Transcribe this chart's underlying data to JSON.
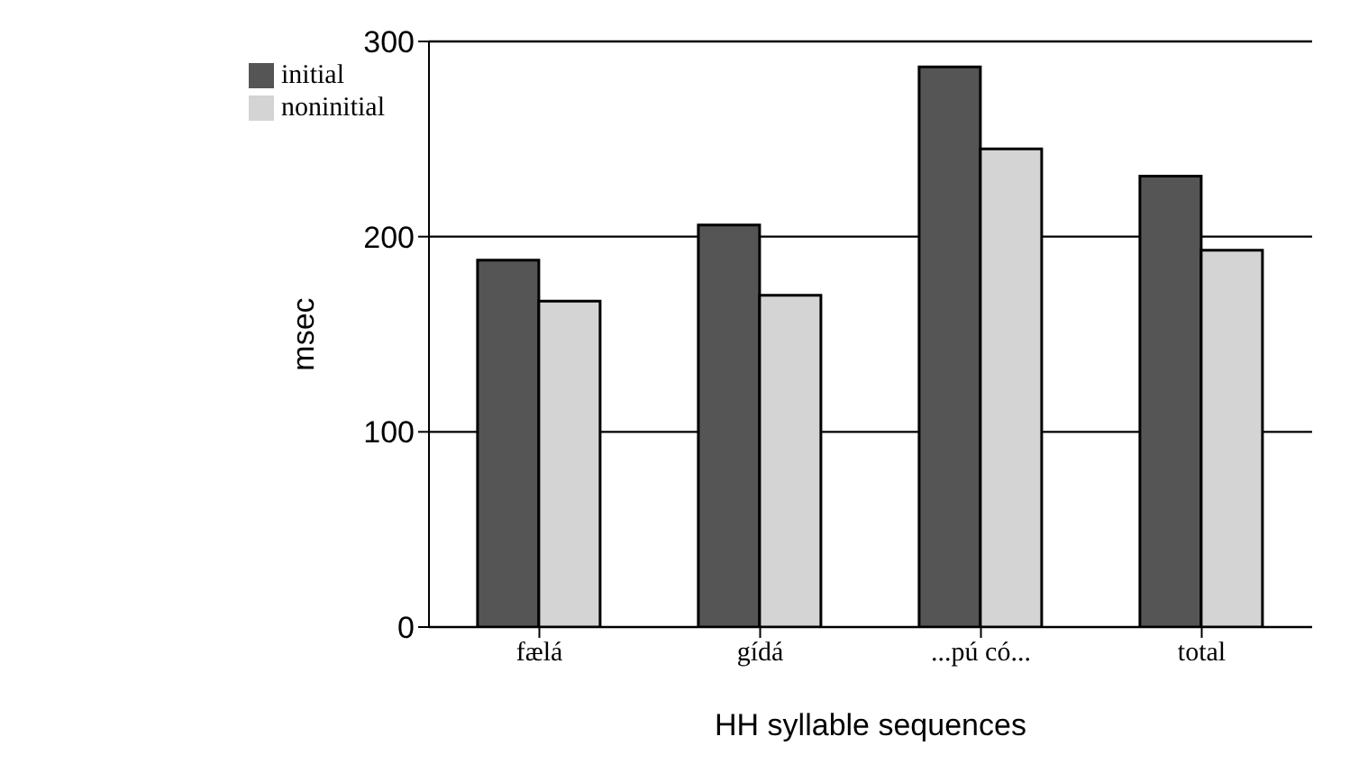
{
  "chart_data": {
    "type": "bar",
    "xlabel": "HH syllable sequences",
    "ylabel": "msec",
    "categories": [
      "fælá",
      "gídá",
      "...pú có...",
      "total"
    ],
    "series": [
      {
        "name": "initial",
        "color": "#555555",
        "values": [
          188,
          206,
          287,
          231
        ]
      },
      {
        "name": "noninitial",
        "color": "#d4d4d4",
        "values": [
          167,
          170,
          245,
          193
        ]
      }
    ],
    "ylim": [
      0,
      300
    ],
    "yticks": [
      0,
      100,
      200,
      300
    ],
    "grid": "y",
    "legend": "top left"
  }
}
